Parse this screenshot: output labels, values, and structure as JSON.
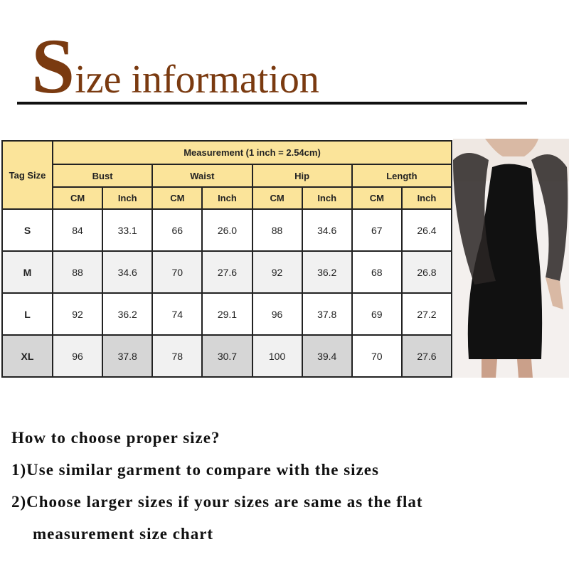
{
  "title": {
    "initial": "S",
    "rest": "ize information"
  },
  "table": {
    "tag_header": "Tag Size",
    "measurement_header": "Measurement  (1 inch = 2.54cm)",
    "groups": [
      "Bust",
      "Waist",
      "Hip",
      "Length"
    ],
    "units": [
      "CM",
      "Inch"
    ],
    "rows": [
      {
        "size": "S",
        "values": [
          "84",
          "33.1",
          "66",
          "26.0",
          "88",
          "34.6",
          "67",
          "26.4"
        ]
      },
      {
        "size": "M",
        "values": [
          "88",
          "34.6",
          "70",
          "27.6",
          "92",
          "36.2",
          "68",
          "26.8"
        ]
      },
      {
        "size": "L",
        "values": [
          "92",
          "36.2",
          "74",
          "29.1",
          "96",
          "37.8",
          "69",
          "27.2"
        ]
      },
      {
        "size": "XL",
        "values": [
          "96",
          "37.8",
          "78",
          "30.7",
          "100",
          "39.4",
          "70",
          "27.6"
        ]
      }
    ]
  },
  "colors": {
    "title": "#7a3a10",
    "header_bg": "#fbe49a"
  },
  "tips": {
    "heading": "How to choose proper size?",
    "line1": "1)Use similar garment to compare with the sizes",
    "line2a": "2)Choose larger sizes if your sizes are same as the flat",
    "line2b": "measurement size chart"
  }
}
